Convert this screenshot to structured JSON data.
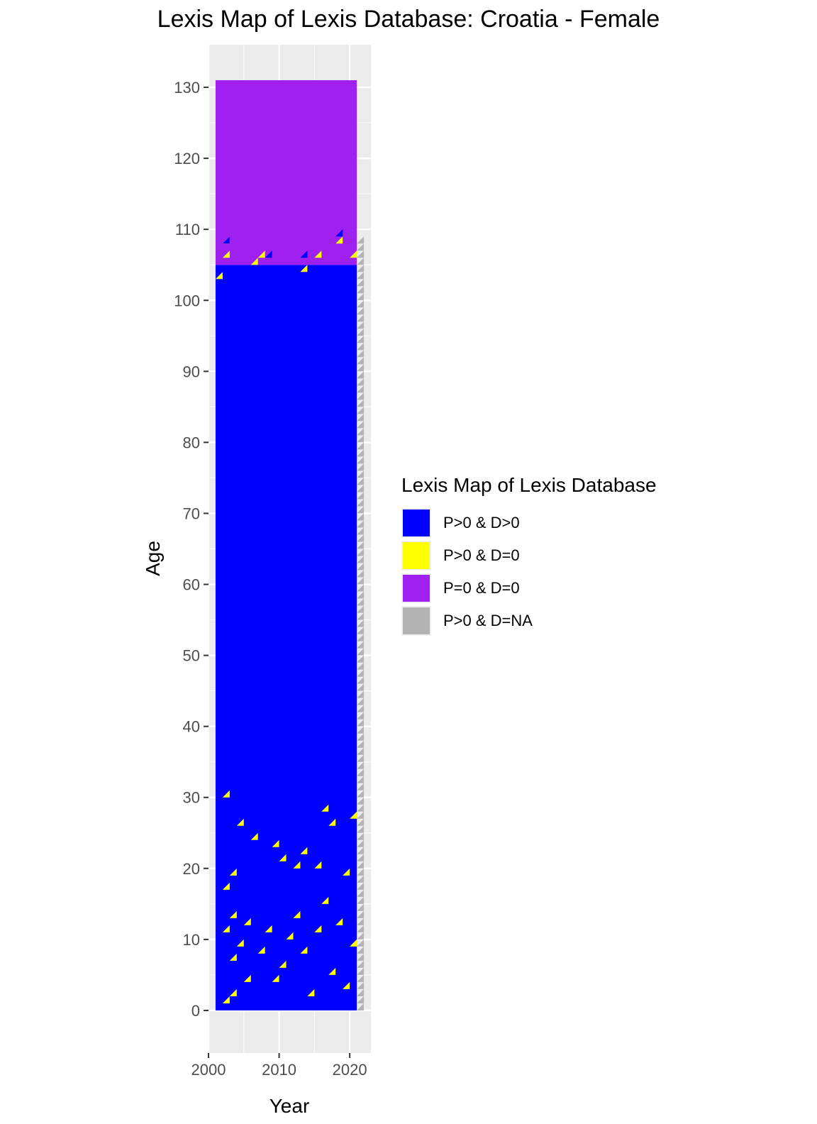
{
  "chart_data": {
    "type": "heatmap",
    "title": "Lexis Map of Lexis Database: Croatia - Female",
    "xlabel": "Year",
    "ylabel": "Age",
    "xlim": [
      2000,
      2023
    ],
    "ylim": [
      -6,
      136
    ],
    "x_ticks": [
      2000,
      2010,
      2020
    ],
    "y_ticks": [
      0,
      10,
      20,
      30,
      40,
      50,
      60,
      70,
      80,
      90,
      100,
      110,
      120,
      130
    ],
    "grid": true,
    "legend": {
      "title": "Lexis Map of Lexis Database",
      "placement": "right",
      "entries": [
        {
          "label": "P>0 & D>0",
          "color": "#0000FF"
        },
        {
          "label": "P>0 & D=0",
          "color": "#FFFF00"
        },
        {
          "label": "P=0 & D=0",
          "color": "#A020F0"
        },
        {
          "label": "P>0 & D=NA",
          "color": "#B3B3B3"
        }
      ]
    },
    "year_range": [
      2001,
      2021
    ],
    "age_range": [
      0,
      131
    ],
    "regions": [
      {
        "category": "P>0 & D>0",
        "years": [
          2001,
          2021
        ],
        "ages": [
          0,
          105
        ],
        "note": "main body"
      },
      {
        "category": "P=0 & D=0",
        "years": [
          2001,
          2021
        ],
        "ages": [
          105,
          131
        ]
      },
      {
        "category": "P>0 & D=NA",
        "years": [
          2021,
          2022
        ],
        "ages": [
          0,
          109
        ]
      }
    ],
    "upper_boundary_cells": [
      {
        "year": 2001,
        "age": 103,
        "category": "P>0 & D=0"
      },
      {
        "year": 2002,
        "age": 106,
        "category": "P>0 & D=0"
      },
      {
        "year": 2002,
        "age": 108,
        "category": "P>0 & D=0"
      },
      {
        "year": 2006,
        "age": 105,
        "category": "P>0 & D=0"
      },
      {
        "year": 2007,
        "age": 106,
        "category": "P>0 & D=0"
      },
      {
        "year": 2013,
        "age": 104,
        "category": "P>0 & D=0"
      },
      {
        "year": 2015,
        "age": 106,
        "category": "P>0 & D=0"
      },
      {
        "year": 2018,
        "age": 108,
        "category": "P>0 & D=0"
      },
      {
        "year": 2020,
        "age": 106,
        "category": "P>0 & D=0"
      },
      {
        "year": 2002,
        "age": 108,
        "category": "P>0 & D>0"
      },
      {
        "year": 2008,
        "age": 106,
        "category": "P>0 & D>0"
      },
      {
        "year": 2013,
        "age": 106,
        "category": "P>0 & D>0"
      },
      {
        "year": 2018,
        "age": 109,
        "category": "P>0 & D>0"
      }
    ],
    "low_age_zero_death_cells": [
      {
        "year": 2002,
        "age": 1
      },
      {
        "year": 2003,
        "age": 2
      },
      {
        "year": 2005,
        "age": 4
      },
      {
        "year": 2003,
        "age": 7
      },
      {
        "year": 2004,
        "age": 9
      },
      {
        "year": 2002,
        "age": 11
      },
      {
        "year": 2003,
        "age": 13
      },
      {
        "year": 2005,
        "age": 12
      },
      {
        "year": 2007,
        "age": 8
      },
      {
        "year": 2008,
        "age": 11
      },
      {
        "year": 2009,
        "age": 4
      },
      {
        "year": 2010,
        "age": 6
      },
      {
        "year": 2011,
        "age": 10
      },
      {
        "year": 2012,
        "age": 13
      },
      {
        "year": 2013,
        "age": 8
      },
      {
        "year": 2014,
        "age": 2
      },
      {
        "year": 2015,
        "age": 11
      },
      {
        "year": 2016,
        "age": 15
      },
      {
        "year": 2017,
        "age": 5
      },
      {
        "year": 2018,
        "age": 12
      },
      {
        "year": 2019,
        "age": 3
      },
      {
        "year": 2020,
        "age": 9
      },
      {
        "year": 2002,
        "age": 17
      },
      {
        "year": 2003,
        "age": 19
      },
      {
        "year": 2004,
        "age": 26
      },
      {
        "year": 2006,
        "age": 24
      },
      {
        "year": 2009,
        "age": 23
      },
      {
        "year": 2010,
        "age": 21
      },
      {
        "year": 2012,
        "age": 20
      },
      {
        "year": 2013,
        "age": 22
      },
      {
        "year": 2015,
        "age": 20
      },
      {
        "year": 2016,
        "age": 28
      },
      {
        "year": 2017,
        "age": 26
      },
      {
        "year": 2019,
        "age": 19
      },
      {
        "year": 2020,
        "age": 27
      },
      {
        "year": 2002,
        "age": 30
      }
    ]
  }
}
